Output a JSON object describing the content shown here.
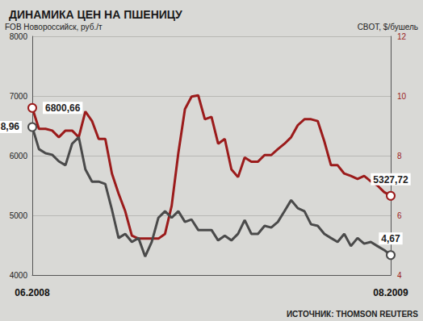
{
  "chart_data": {
    "type": "line",
    "title": "ДИНАМИКА ЦЕН НА ПШЕНИЦУ",
    "ylabel": "FOB Новороссийск, руб./т",
    "y2label": "CBOT, $/бушель",
    "source": "ИСТОЧНИК: THOMSON REUTERS",
    "categories": [
      "06.2008",
      null,
      null,
      null,
      null,
      null,
      null,
      null,
      null,
      null,
      null,
      null,
      null,
      null,
      null,
      null,
      null,
      null,
      null,
      null,
      null,
      null,
      null,
      null,
      null,
      null,
      null,
      null,
      null,
      null,
      null,
      null,
      null,
      null,
      null,
      null,
      null,
      null,
      null,
      null,
      null,
      null,
      null,
      null,
      null,
      null,
      null,
      null,
      null,
      null,
      null,
      null,
      null,
      null,
      "08.2009"
    ],
    "ylim": [
      4000,
      8000
    ],
    "yticks": [
      4000,
      5000,
      6000,
      7000,
      8000
    ],
    "y2lim": [
      4,
      12
    ],
    "y2ticks": [
      4,
      6,
      8,
      10,
      12
    ],
    "grid": true,
    "series": [
      {
        "color": "#9b1b1b",
        "marker": "circle",
        "values": [
          6800.66,
          6450,
          6450,
          6420,
          6310,
          6420,
          6420,
          6310,
          6740,
          6580,
          6280,
          6280,
          5700,
          5365,
          5070,
          4660,
          4610,
          4610,
          4610,
          4610,
          4690,
          5160,
          6040,
          6780,
          6990,
          7010,
          6610,
          6650,
          6200,
          6280,
          5770,
          5640,
          5970,
          5900,
          5900,
          6010,
          6010,
          6110,
          6200,
          6310,
          6510,
          6610,
          6610,
          6580,
          6240,
          5840,
          5840,
          5700,
          5660,
          5610,
          5660,
          5570,
          5500,
          5390,
          5327.72
        ],
        "value_labels": [
          "6800,66",
          null,
          null,
          null,
          null,
          null,
          null,
          null,
          null,
          null,
          null,
          null,
          null,
          null,
          null,
          null,
          null,
          null,
          null,
          null,
          null,
          null,
          null,
          null,
          null,
          null,
          null,
          null,
          null,
          null,
          null,
          null,
          null,
          null,
          null,
          null,
          null,
          null,
          null,
          null,
          null,
          null,
          null,
          null,
          null,
          null,
          null,
          null,
          null,
          null,
          null,
          null,
          null,
          null,
          "5327,72"
        ]
      },
      {
        "color": "#4a4a4a",
        "marker": "circle",
        "axis": "y2",
        "values": [
          8.96,
          8.22,
          8.08,
          8.03,
          7.81,
          7.68,
          8.4,
          8.62,
          7.54,
          7.13,
          7.13,
          7.05,
          6.19,
          5.24,
          5.38,
          5.11,
          5.24,
          4.62,
          5.11,
          5.92,
          6.14,
          5.92,
          6.14,
          5.78,
          5.86,
          5.51,
          5.51,
          5.51,
          5.16,
          5.32,
          5.16,
          5.38,
          5.84,
          5.38,
          5.38,
          5.65,
          5.59,
          5.78,
          6.14,
          6.51,
          6.24,
          6.14,
          5.7,
          5.65,
          5.38,
          5.24,
          5.11,
          5.38,
          4.97,
          5.24,
          5.05,
          5.11,
          4.97,
          4.84,
          4.67
        ],
        "value_labels": [
          "8,96",
          null,
          null,
          null,
          null,
          null,
          null,
          null,
          null,
          null,
          null,
          null,
          null,
          null,
          null,
          null,
          null,
          null,
          null,
          null,
          null,
          null,
          null,
          null,
          null,
          null,
          null,
          null,
          null,
          null,
          null,
          null,
          null,
          null,
          null,
          null,
          null,
          null,
          null,
          null,
          null,
          null,
          null,
          null,
          null,
          null,
          null,
          null,
          null,
          null,
          null,
          null,
          null,
          null,
          "4,67"
        ]
      }
    ]
  }
}
